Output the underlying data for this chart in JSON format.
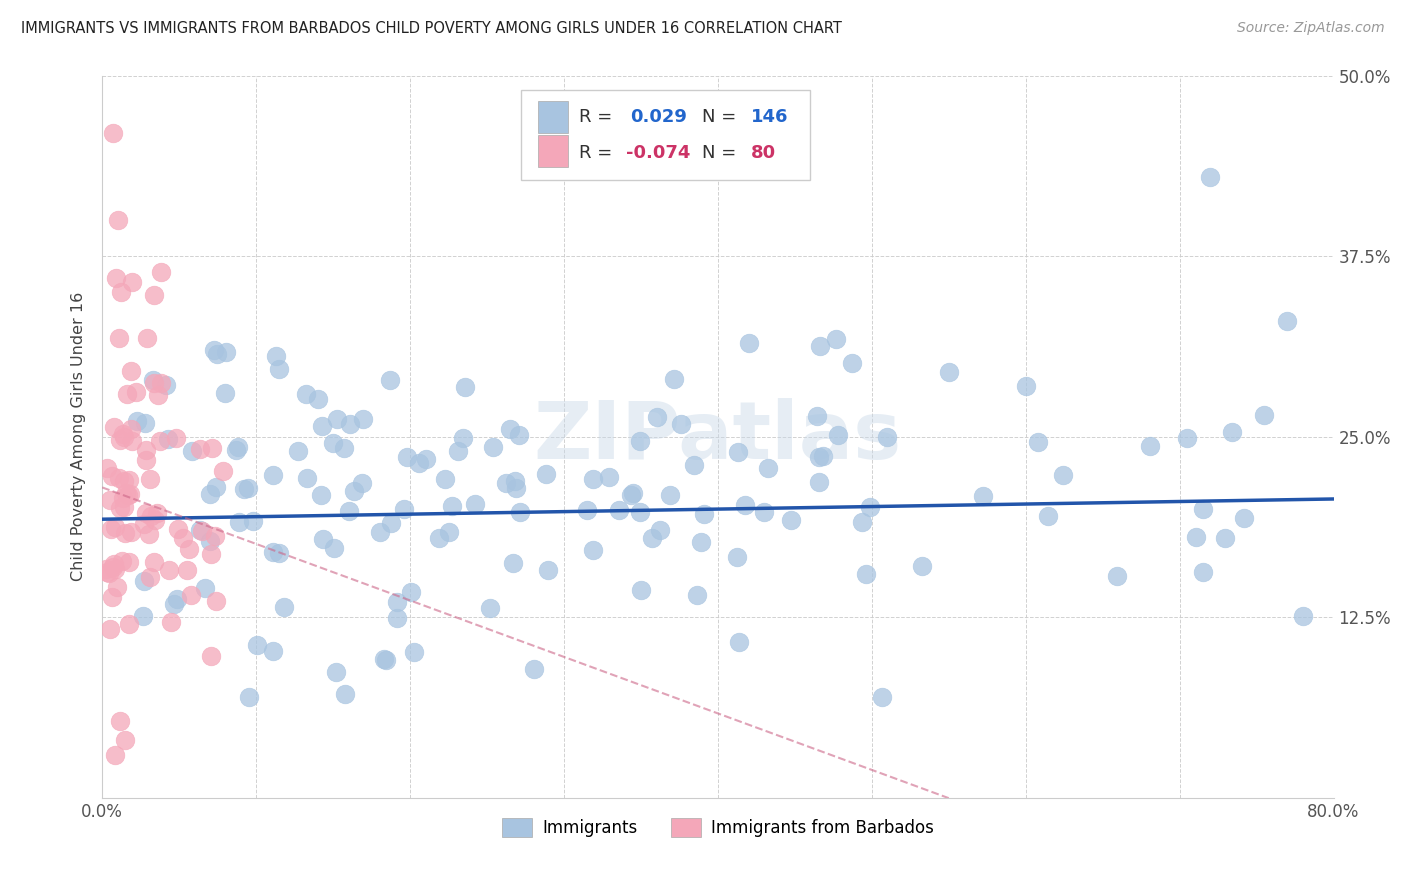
{
  "title": "IMMIGRANTS VS IMMIGRANTS FROM BARBADOS CHILD POVERTY AMONG GIRLS UNDER 16 CORRELATION CHART",
  "source": "Source: ZipAtlas.com",
  "ylabel": "Child Poverty Among Girls Under 16",
  "xlim": [
    0.0,
    0.8
  ],
  "ylim": [
    0.0,
    0.5
  ],
  "xtick_positions": [
    0.0,
    0.1,
    0.2,
    0.3,
    0.4,
    0.5,
    0.6,
    0.7,
    0.8
  ],
  "xticklabels": [
    "0.0%",
    "",
    "",
    "",
    "",
    "",
    "",
    "",
    "80.0%"
  ],
  "ytick_positions": [
    0.0,
    0.125,
    0.25,
    0.375,
    0.5
  ],
  "yticklabels": [
    "",
    "12.5%",
    "25.0%",
    "37.5%",
    "50.0%"
  ],
  "legend1_R": "0.029",
  "legend1_N": "146",
  "legend2_R": "-0.074",
  "legend2_N": "80",
  "color_blue": "#a8c4e0",
  "color_pink": "#f4a7b9",
  "trendline1_color": "#2255aa",
  "trendline2_color": "#cc6688",
  "watermark": "ZIPatlas",
  "blue_trend_x": [
    0.0,
    0.8
  ],
  "blue_trend_y": [
    0.193,
    0.207
  ],
  "pink_trend_x": [
    0.0,
    0.55
  ],
  "pink_trend_y": [
    0.215,
    0.0
  ]
}
